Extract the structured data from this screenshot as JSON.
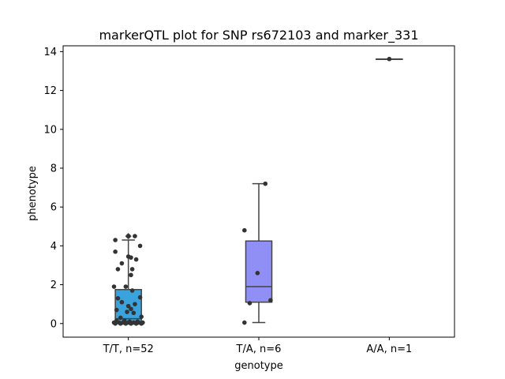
{
  "chart_data": {
    "type": "box",
    "title": "markerQTL plot for SNP rs672103 and marker_331",
    "xlabel": "genotype",
    "ylabel": "phenotype",
    "ylim": [
      -0.7,
      14.3
    ],
    "yticks": [
      0,
      2,
      4,
      6,
      8,
      10,
      12,
      14
    ],
    "categories": [
      "T/T, n=52",
      "T/A, n=6",
      "A/A, n=1"
    ],
    "boxes": [
      {
        "q1": 0.05,
        "median": 0.25,
        "q3": 1.75,
        "whisker_low": 0.0,
        "whisker_high": 4.3,
        "fliers": [
          4.5
        ],
        "color": "#3aa2dd"
      },
      {
        "q1": 1.1,
        "median": 1.9,
        "q3": 4.25,
        "whisker_low": 0.05,
        "whisker_high": 7.2,
        "fliers": [],
        "color": "#8f8ff5"
      },
      {
        "q1": 13.62,
        "median": 13.62,
        "q3": 13.62,
        "whisker_low": 13.62,
        "whisker_high": 13.62,
        "fliers": [],
        "color": "#c98fe0"
      }
    ],
    "points": [
      {
        "group": 0,
        "x_offset": -0.1,
        "y": 4.3
      },
      {
        "group": 0,
        "x_offset": 0.0,
        "y": 4.5
      },
      {
        "group": 0,
        "x_offset": 0.05,
        "y": 4.5
      },
      {
        "group": 0,
        "x_offset": 0.09,
        "y": 4.0
      },
      {
        "group": 0,
        "x_offset": -0.1,
        "y": 3.7
      },
      {
        "group": 0,
        "x_offset": 0.0,
        "y": 3.45
      },
      {
        "group": 0,
        "x_offset": 0.02,
        "y": 3.4
      },
      {
        "group": 0,
        "x_offset": 0.06,
        "y": 3.3
      },
      {
        "group": 0,
        "x_offset": -0.05,
        "y": 3.1
      },
      {
        "group": 0,
        "x_offset": -0.08,
        "y": 2.8
      },
      {
        "group": 0,
        "x_offset": 0.03,
        "y": 2.8
      },
      {
        "group": 0,
        "x_offset": 0.02,
        "y": 2.5
      },
      {
        "group": 0,
        "x_offset": -0.11,
        "y": 1.9
      },
      {
        "group": 0,
        "x_offset": -0.02,
        "y": 1.9
      },
      {
        "group": 0,
        "x_offset": 0.03,
        "y": 1.7
      },
      {
        "group": 0,
        "x_offset": 0.09,
        "y": 1.35
      },
      {
        "group": 0,
        "x_offset": -0.08,
        "y": 1.3
      },
      {
        "group": 0,
        "x_offset": -0.05,
        "y": 1.1
      },
      {
        "group": 0,
        "x_offset": 0.05,
        "y": 1.0
      },
      {
        "group": 0,
        "x_offset": 0.0,
        "y": 0.9
      },
      {
        "group": 0,
        "x_offset": 0.02,
        "y": 0.75
      },
      {
        "group": 0,
        "x_offset": -0.09,
        "y": 0.7
      },
      {
        "group": 0,
        "x_offset": -0.01,
        "y": 0.6
      },
      {
        "group": 0,
        "x_offset": 0.04,
        "y": 0.55
      },
      {
        "group": 0,
        "x_offset": 0.1,
        "y": 0.35
      },
      {
        "group": 0,
        "x_offset": -0.06,
        "y": 0.3
      },
      {
        "group": 0,
        "x_offset": -0.09,
        "y": 0.15
      },
      {
        "group": 0,
        "x_offset": -0.03,
        "y": 0.15
      },
      {
        "group": 0,
        "x_offset": 0.01,
        "y": 0.1
      },
      {
        "group": 0,
        "x_offset": 0.07,
        "y": 0.1
      },
      {
        "group": 0,
        "x_offset": -0.11,
        "y": 0.05
      },
      {
        "group": 0,
        "x_offset": -0.07,
        "y": 0.05
      },
      {
        "group": 0,
        "x_offset": -0.04,
        "y": 0.05
      },
      {
        "group": 0,
        "x_offset": 0.0,
        "y": 0.05
      },
      {
        "group": 0,
        "x_offset": 0.04,
        "y": 0.05
      },
      {
        "group": 0,
        "x_offset": 0.08,
        "y": 0.05
      },
      {
        "group": 0,
        "x_offset": 0.11,
        "y": 0.05
      },
      {
        "group": 0,
        "x_offset": -0.1,
        "y": 0.0
      },
      {
        "group": 0,
        "x_offset": -0.06,
        "y": 0.0
      },
      {
        "group": 0,
        "x_offset": -0.02,
        "y": 0.0
      },
      {
        "group": 0,
        "x_offset": 0.02,
        "y": 0.0
      },
      {
        "group": 0,
        "x_offset": 0.06,
        "y": 0.0
      },
      {
        "group": 0,
        "x_offset": 0.1,
        "y": 0.0
      },
      {
        "group": 1,
        "x_offset": 0.05,
        "y": 7.2
      },
      {
        "group": 1,
        "x_offset": -0.11,
        "y": 4.8
      },
      {
        "group": 1,
        "x_offset": -0.01,
        "y": 2.6
      },
      {
        "group": 1,
        "x_offset": 0.09,
        "y": 1.2
      },
      {
        "group": 1,
        "x_offset": -0.07,
        "y": 1.05
      },
      {
        "group": 1,
        "x_offset": -0.11,
        "y": 0.05
      },
      {
        "group": 2,
        "x_offset": 0.0,
        "y": 13.62
      }
    ],
    "grid": false,
    "legend": "none"
  }
}
